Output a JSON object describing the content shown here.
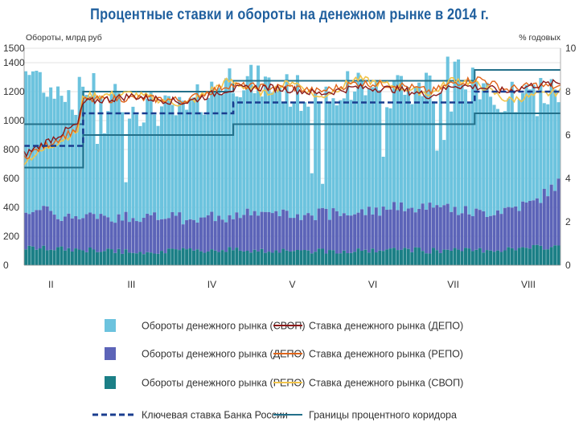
{
  "chart_data": {
    "type": "bar+line",
    "title": "Процентные ставки и обороты на денежном рынке в 2014 г.",
    "ylabel_left": "Обороты, млрд руб",
    "ylabel_right": "% годовых",
    "ylim_left": [
      0,
      1500
    ],
    "ylim_right": [
      0,
      10
    ],
    "yticks_left": [
      "0",
      "200",
      "400",
      "600",
      "800",
      "1000",
      "1200",
      "1400",
      "1500"
    ],
    "yticks_left_values": [
      0,
      200,
      400,
      600,
      800,
      1000,
      1200,
      1400,
      1500
    ],
    "yticks_right": [
      "0",
      "2",
      "4",
      "6",
      "8",
      "10"
    ],
    "yticks_right_values": [
      0,
      2,
      4,
      6,
      8,
      10
    ],
    "x_months": [
      "II",
      "III",
      "IV",
      "V",
      "VI",
      "VII",
      "VIII"
    ],
    "x_month_positions": [
      0.05,
      0.2,
      0.35,
      0.5,
      0.65,
      0.8,
      0.94
    ],
    "series_samples": {
      "x": [
        0.0,
        0.1,
        0.11,
        0.2,
        0.3,
        0.38,
        0.45,
        0.5,
        0.55,
        0.62,
        0.7,
        0.76,
        0.8,
        0.85,
        0.9,
        0.95,
        1.0
      ],
      "svop_volume_stack_top": [
        1350,
        1150,
        1250,
        1100,
        1050,
        1300,
        1250,
        1200,
        1150,
        1250,
        1200,
        1250,
        1350,
        1200,
        1150,
        1150,
        1220
      ],
      "depo_volume_stack_top": [
        400,
        320,
        330,
        340,
        320,
        340,
        360,
        340,
        350,
        360,
        400,
        420,
        380,
        360,
        390,
        430,
        580
      ],
      "repo_volume": [
        120,
        110,
        105,
        95,
        100,
        110,
        100,
        105,
        100,
        100,
        110,
        100,
        100,
        105,
        110,
        120,
        130
      ],
      "depo_rate": [
        5.1,
        6.5,
        7.5,
        7.8,
        7.5,
        8.1,
        8.2,
        8.1,
        7.9,
        8.2,
        8.1,
        7.8,
        8.3,
        8.2,
        8.0,
        8.3,
        8.4
      ],
      "repo_rate": [
        5.0,
        6.3,
        7.6,
        7.7,
        7.6,
        8.3,
        8.2,
        8.2,
        8.0,
        8.4,
        8.3,
        8.0,
        8.4,
        8.6,
        8.1,
        8.3,
        8.2
      ],
      "svop_rate": [
        4.8,
        6.2,
        7.8,
        7.9,
        7.4,
        8.5,
        7.9,
        8.5,
        7.7,
        8.6,
        8.2,
        7.9,
        8.6,
        8.3,
        7.6,
        7.8,
        8.0
      ]
    },
    "key_rate": [
      {
        "x0": 0.0,
        "x1": 0.11,
        "value": 5.5
      },
      {
        "x0": 0.11,
        "x1": 0.39,
        "value": 7.0
      },
      {
        "x0": 0.39,
        "x1": 0.84,
        "value": 7.5
      },
      {
        "x0": 0.84,
        "x1": 1.0,
        "value": 8.0
      }
    ],
    "corridor_upper": [
      {
        "x0": 0.0,
        "x1": 0.11,
        "value": 6.5
      },
      {
        "x0": 0.11,
        "x1": 0.39,
        "value": 8.0
      },
      {
        "x0": 0.39,
        "x1": 0.84,
        "value": 8.5
      },
      {
        "x0": 0.84,
        "x1": 1.0,
        "value": 9.0
      }
    ],
    "corridor_lower": [
      {
        "x0": 0.0,
        "x1": 0.11,
        "value": 4.5
      },
      {
        "x0": 0.11,
        "x1": 0.39,
        "value": 6.0
      },
      {
        "x0": 0.39,
        "x1": 0.84,
        "value": 6.5
      },
      {
        "x0": 0.84,
        "x1": 1.0,
        "value": 7.0
      }
    ],
    "legend": [
      {
        "label": "Обороты денежного рынка (СВОП)",
        "kind": "bar",
        "color": "#6cc3de"
      },
      {
        "label": "Ставка денежного рынка (ДЕПО)",
        "kind": "line",
        "color": "#8b1a1a"
      },
      {
        "label": "Обороты денежного рынка (ДЕПО)",
        "kind": "bar",
        "color": "#5c64b8"
      },
      {
        "label": "Ставка денежного рынка (РЕПО)",
        "kind": "line",
        "color": "#e0651a"
      },
      {
        "label": "Обороты денежного рынка (РЕПО)",
        "kind": "bar",
        "color": "#1b7f86"
      },
      {
        "label": "Ставка денежного рынка (СВОП)",
        "kind": "line",
        "color": "#f2c44a"
      },
      {
        "label": "Ключевая ставка Банка России",
        "kind": "dash",
        "color": "#1a3d8f"
      },
      {
        "label": "Границы процентного коридора",
        "kind": "line",
        "color": "#23708a"
      }
    ]
  },
  "colors": {
    "svop_bar": "#6cc3de",
    "depo_bar": "#5c64b8",
    "repo_bar": "#1b7f86",
    "depo_line": "#8b1a1a",
    "repo_line": "#e0651a",
    "svop_line": "#f2c44a",
    "key_rate": "#1a3d8f",
    "corridor": "#23708a",
    "grid": "#c8c8c8",
    "title": "#1f5f9e"
  }
}
